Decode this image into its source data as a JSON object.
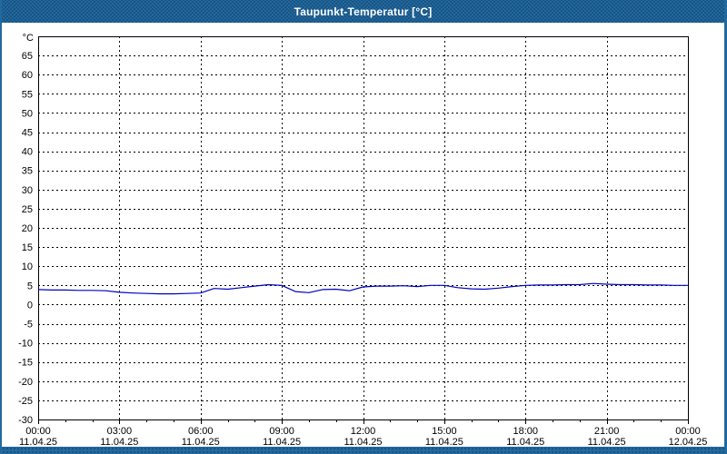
{
  "window": {
    "title": "Taupunkt-Temperatur [°C]"
  },
  "colors": {
    "titlebar": "#22699e",
    "window_border": "#22699e",
    "plot_border": "#000000",
    "grid": "#000000",
    "series_line": "#0000c0",
    "background": "#ffffff"
  },
  "chart_data": {
    "type": "line",
    "title": "Taupunkt-Temperatur [°C]",
    "y_unit_label": "°C",
    "ylim": [
      -30,
      70
    ],
    "y_ticks": [
      -30,
      -25,
      -20,
      -15,
      -10,
      -5,
      0,
      5,
      10,
      15,
      20,
      25,
      30,
      35,
      40,
      45,
      50,
      55,
      60,
      65
    ],
    "grid": "dashed",
    "legend": "none",
    "x_range_hours": [
      0,
      24
    ],
    "x_minor_tick_hours": 1,
    "x_major_ticks": [
      {
        "hour": 0,
        "time": "00:00",
        "date": "11.04.25"
      },
      {
        "hour": 3,
        "time": "03:00",
        "date": "11.04.25"
      },
      {
        "hour": 6,
        "time": "06:00",
        "date": "11.04.25"
      },
      {
        "hour": 9,
        "time": "09:00",
        "date": "11.04.25"
      },
      {
        "hour": 12,
        "time": "12:00",
        "date": "11.04.25"
      },
      {
        "hour": 15,
        "time": "15:00",
        "date": "11.04.25"
      },
      {
        "hour": 18,
        "time": "18:00",
        "date": "11.04.25"
      },
      {
        "hour": 21,
        "time": "21:00",
        "date": "11.04.25"
      },
      {
        "hour": 24,
        "time": "00:00",
        "date": "12.04.25"
      }
    ],
    "series": [
      {
        "name": "Taupunkt-Temperatur",
        "color": "#0000c0",
        "hours": [
          0,
          0.5,
          1,
          1.5,
          2,
          2.5,
          3,
          3.5,
          4,
          4.5,
          5,
          5.5,
          6,
          6.5,
          7,
          7.5,
          8,
          8.5,
          9,
          9.5,
          10,
          10.5,
          11,
          11.5,
          12,
          12.5,
          13,
          13.5,
          14,
          14.5,
          15,
          15.5,
          16,
          16.5,
          17,
          17.5,
          18,
          18.5,
          19,
          19.5,
          20,
          20.5,
          21,
          21.5,
          22,
          22.5,
          23,
          23.5,
          24
        ],
        "values": [
          3.9,
          3.8,
          3.8,
          3.7,
          3.7,
          3.6,
          3.2,
          3.0,
          2.9,
          2.8,
          2.8,
          2.9,
          3.0,
          4.2,
          4.0,
          4.4,
          4.8,
          5.2,
          5.0,
          3.4,
          3.1,
          3.9,
          4.0,
          3.6,
          4.6,
          4.8,
          4.8,
          4.9,
          4.7,
          5.0,
          5.0,
          4.4,
          4.1,
          4.0,
          4.3,
          4.7,
          5.0,
          5.1,
          5.1,
          5.2,
          5.2,
          5.5,
          5.3,
          5.2,
          5.2,
          5.1,
          5.1,
          5.0,
          5.0
        ]
      }
    ]
  }
}
